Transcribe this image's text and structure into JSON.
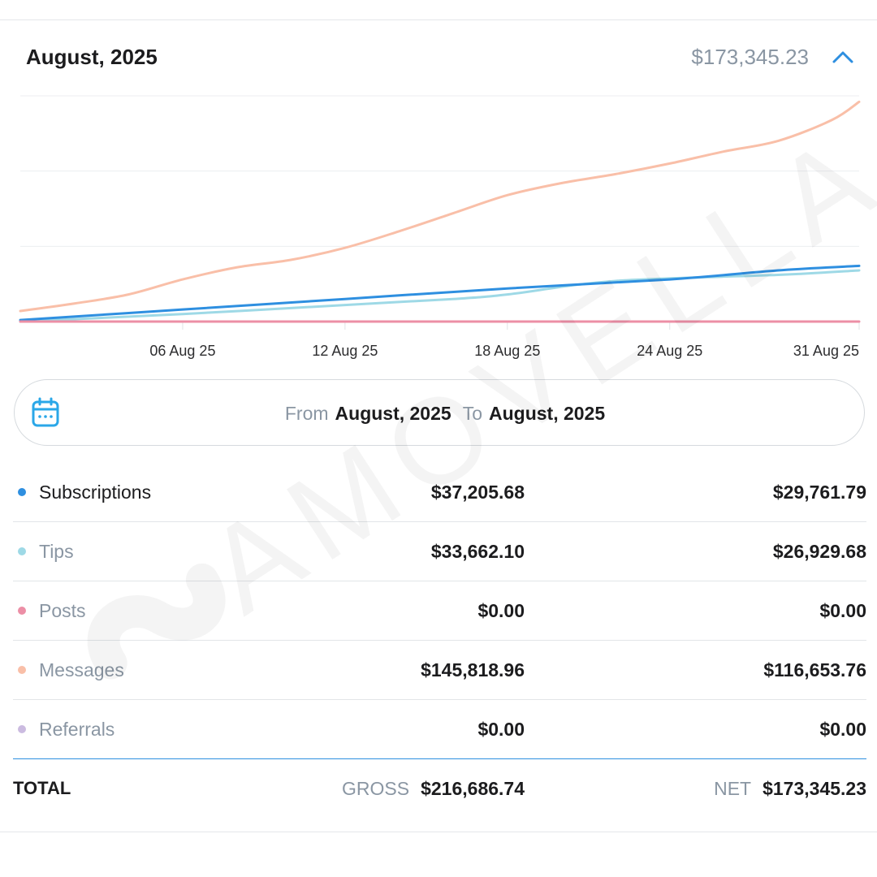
{
  "header": {
    "period": "August, 2025",
    "total": "$173,345.23"
  },
  "date_range": {
    "from_label": "From",
    "from_value": "August, 2025",
    "to_label": "To",
    "to_value": "August, 2025"
  },
  "rows": [
    {
      "label": "Subscriptions",
      "gross": "$37,205.68",
      "net": "$29,761.79",
      "color": "#2e8fe0",
      "label_color": "#1c1c1e"
    },
    {
      "label": "Tips",
      "gross": "$33,662.10",
      "net": "$26,929.68",
      "color": "#9ed9e6",
      "label_color": "#8a96a3"
    },
    {
      "label": "Posts",
      "gross": "$0.00",
      "net": "$0.00",
      "color": "#ec8fa6",
      "label_color": "#8a96a3"
    },
    {
      "label": "Messages",
      "gross": "$145,818.96",
      "net": "$116,653.76",
      "color": "#f9bfa8",
      "label_color": "#8a96a3"
    },
    {
      "label": "Referrals",
      "gross": "$0.00",
      "net": "$0.00",
      "color": "#cbbbe0",
      "label_color": "#8a96a3"
    }
  ],
  "total": {
    "label": "TOTAL",
    "gross_caption": "GROSS",
    "gross": "$216,686.74",
    "net_caption": "NET",
    "net": "$173,345.23"
  },
  "watermark": "AMOVELLA",
  "icons": {
    "calendar": "calendar-icon",
    "collapse": "chevron-up-icon"
  },
  "chart_data": {
    "type": "line",
    "grid": true,
    "x_ticks": [
      "06 Aug 25",
      "12 Aug 25",
      "18 Aug 25",
      "24 Aug 25",
      "31 Aug 25"
    ],
    "x_tick_days": [
      6,
      12,
      18,
      24,
      31
    ],
    "xlim": [
      0,
      31
    ],
    "ylim": [
      0,
      150000
    ],
    "series": [
      {
        "key": "messages",
        "color": "#f9bfa8",
        "x": [
          0,
          2,
          4,
          6,
          8,
          10,
          12,
          14,
          16,
          18,
          20,
          22,
          24,
          26,
          28,
          30,
          31
        ],
        "y": [
          7000,
          12000,
          18000,
          28000,
          36000,
          41000,
          49000,
          60000,
          72000,
          84000,
          92000,
          98000,
          105000,
          113000,
          120000,
          134000,
          146000
        ]
      },
      {
        "key": "subscriptions",
        "color": "#2e8fe0",
        "x": [
          0,
          6,
          12,
          18,
          24,
          28,
          31
        ],
        "y": [
          1000,
          8000,
          15000,
          22000,
          28000,
          34000,
          37000
        ]
      },
      {
        "key": "tips",
        "color": "#9ed9e6",
        "x": [
          0,
          6,
          12,
          16,
          18,
          22,
          28,
          31
        ],
        "y": [
          0,
          5000,
          11000,
          15000,
          18000,
          27000,
          31000,
          34000
        ]
      },
      {
        "key": "posts",
        "color": "#ec8fa6",
        "x": [
          0,
          31
        ],
        "y": [
          0,
          0
        ]
      }
    ]
  }
}
